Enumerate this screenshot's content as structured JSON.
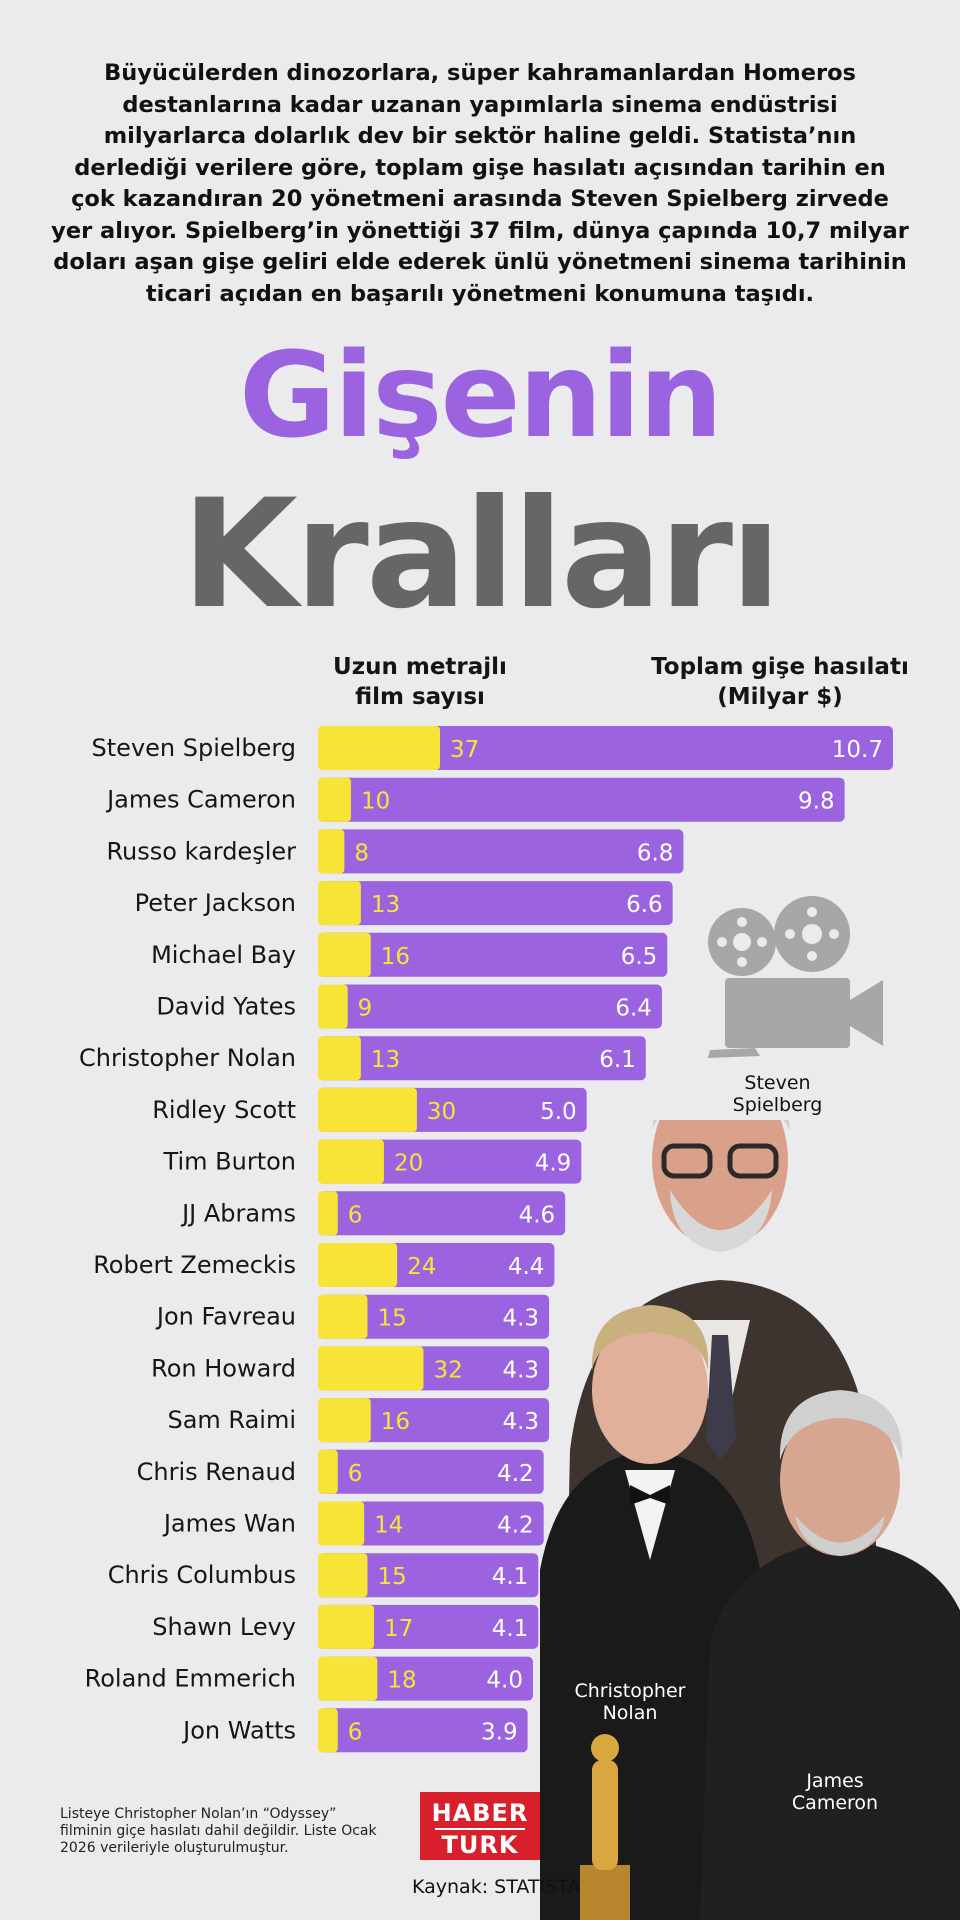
{
  "intro_text": "Büyücülerden dinozorlara, süper kahramanlardan Homeros destanlarına kadar uzanan yapımlarla sinema endüstrisi milyarlarca dolarlık dev bir sektör haline geldi. Statista’nın derlediği verilere göre, toplam gişe hasılatı açısından tarihin en çok kazandıran 20 yönetmeni arasında Steven Spielberg zirvede yer alıyor. Spielberg’in yönettiği 37 film, dünya çapında 10,7 milyar doları aşan gişe geliri elde ederek ünlü yönetmeni sinema tarihinin ticari açıdan en başarılı yönetmeni konumuna taşıdı.",
  "title_line1": "Gişenin",
  "title_line2": "Kralları",
  "col_films_line1": "Uzun metrajlı",
  "col_films_line2": "film sayısı",
  "col_gross_line1": "Toplam gişe hasılatı",
  "col_gross_line2": "(Milyar $)",
  "colors": {
    "gross_bar": "#9b63e0",
    "films_bar": "#f7e436",
    "films_text": "#f7e436",
    "gross_text": "#ffffff",
    "title_purple": "#9b63e0",
    "title_gray": "#666666",
    "logo_red": "#d81f2c"
  },
  "chart_data": {
    "type": "bar",
    "orientation": "horizontal",
    "categories": [
      "Steven Spielberg",
      "James Cameron",
      "Russo kardeşler",
      "Peter Jackson",
      "Michael Bay",
      "David Yates",
      "Christopher Nolan",
      "Ridley Scott",
      "Tim Burton",
      "JJ Abrams",
      "Robert Zemeckis",
      "Jon Favreau",
      "Ron Howard",
      "Sam Raimi",
      "Chris Renaud",
      "James Wan",
      "Chris Columbus",
      "Shawn Levy",
      "Roland Emmerich",
      "Jon Watts"
    ],
    "series": [
      {
        "name": "Toplam gişe hasılatı (Milyar $)",
        "values": [
          10.7,
          9.8,
          6.8,
          6.6,
          6.5,
          6.4,
          6.1,
          5.0,
          4.9,
          4.6,
          4.4,
          4.3,
          4.3,
          4.3,
          4.2,
          4.2,
          4.1,
          4.1,
          4.0,
          3.9
        ]
      },
      {
        "name": "Uzun metrajlı film sayısı",
        "values": [
          37,
          10,
          8,
          13,
          16,
          9,
          13,
          30,
          20,
          6,
          24,
          15,
          32,
          16,
          6,
          14,
          15,
          17,
          18,
          6
        ]
      }
    ],
    "gross_labels": [
      "10.7",
      "9.8",
      "6.8",
      "6.6",
      "6.5",
      "6.4",
      "6.1",
      "5.0",
      "4.9",
      "4.6",
      "4.4",
      "4.3",
      "4.3",
      "4.3",
      "4.2",
      "4.2",
      "4.1",
      "4.1",
      "4.0",
      "3.9"
    ],
    "xlim_gross": [
      0,
      10.7
    ],
    "xlim_films": [
      0,
      37
    ]
  },
  "captions": {
    "spielberg": [
      "Steven",
      "Spielberg"
    ],
    "nolan": [
      "Christopher",
      "Nolan"
    ],
    "cameron": [
      "James",
      "Cameron"
    ]
  },
  "footnote": "Listeye Christopher Nolan’ın “Odyssey” filminin giçe hasılatı dahil değildir. Liste Ocak 2026 verileriyle oluşturulmuştur.",
  "logo_line1": "HABER",
  "logo_line2": "TURK",
  "source_text": "Kaynak: STATISTA",
  "icon": "film-camera-icon"
}
